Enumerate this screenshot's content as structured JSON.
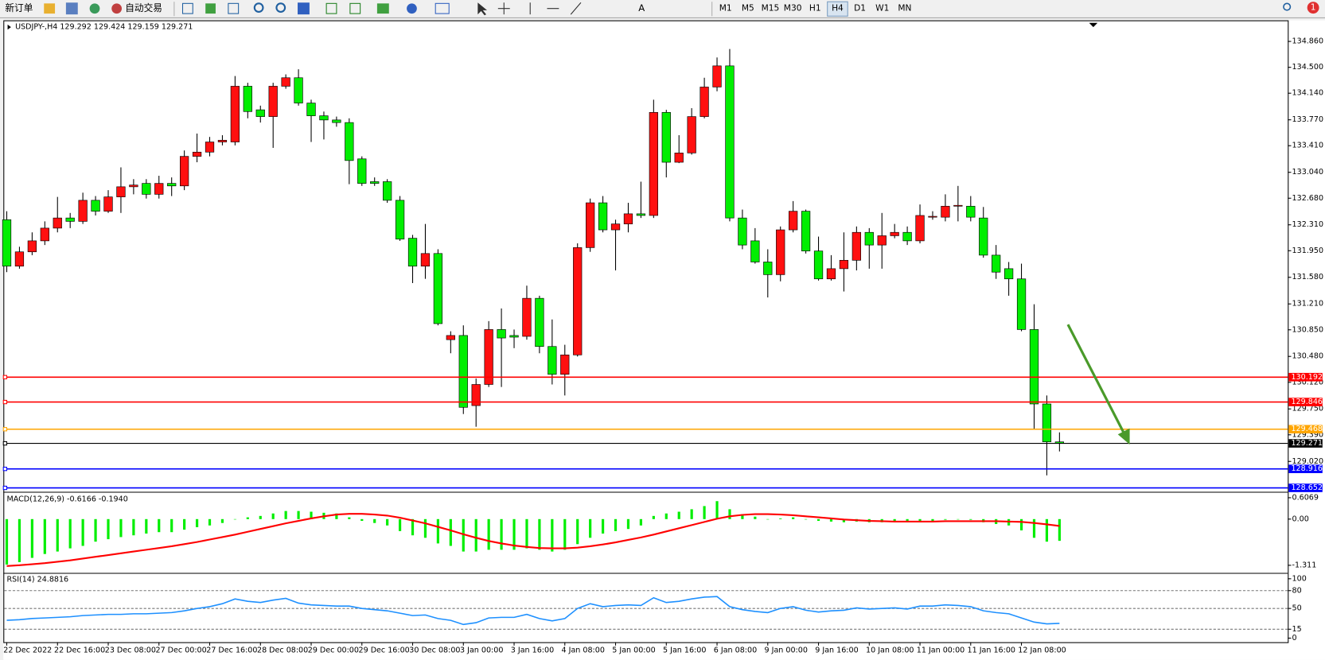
{
  "toolbar": {
    "new_order": "新订单",
    "auto_trading": "自动交易",
    "timeframes": [
      "M1",
      "M5",
      "M15",
      "M30",
      "H1",
      "H4",
      "D1",
      "W1",
      "MN"
    ],
    "active_timeframe": "H4",
    "notifications": 1
  },
  "chart_data": [
    {
      "type": "candlestick",
      "title": "USDJPY-,H4 129.292 129.424 129.159 129.271",
      "up_color": "#ff1010",
      "down_color": "#00ee00",
      "categories": [
        "22 Dec 2022",
        null,
        null,
        null,
        "22 Dec 16:00",
        null,
        null,
        null,
        "23 Dec 08:00",
        null,
        null,
        null,
        "27 Dec 00:00",
        null,
        null,
        null,
        "27 Dec 16:00",
        null,
        null,
        null,
        "28 Dec 08:00",
        null,
        null,
        null,
        "29 Dec 00:00",
        null,
        null,
        null,
        "29 Dec 16:00",
        null,
        null,
        null,
        "30 Dec 08:00",
        null,
        null,
        null,
        "3 Jan 00:00",
        null,
        null,
        null,
        "3 Jan 16:00",
        null,
        null,
        null,
        "4 Jan 08:00",
        null,
        null,
        null,
        "5 Jan 00:00",
        null,
        null,
        null,
        "5 Jan 16:00",
        null,
        null,
        null,
        "6 Jan 08:00",
        null,
        null,
        null,
        "9 Jan 00:00",
        null,
        null,
        null,
        "9 Jan 16:00",
        null,
        null,
        null,
        "10 Jan 08:00",
        null,
        null,
        null,
        "11 Jan 00:00",
        null,
        null,
        null,
        "11 Jan 16:00",
        null,
        null,
        null,
        "12 Jan 08:00",
        null,
        null,
        null
      ],
      "open": [
        132.381,
        131.735,
        131.934,
        132.087,
        132.264,
        132.405,
        132.358,
        132.651,
        132.499,
        132.698,
        132.839,
        132.886,
        132.734,
        132.886,
        132.851,
        133.262,
        133.321,
        133.462,
        133.462,
        134.237,
        133.909,
        133.815,
        134.237,
        134.355,
        134.003,
        133.826,
        133.768,
        133.732,
        133.227,
        132.91,
        132.91,
        132.651,
        132.123,
        131.735,
        131.911,
        130.713,
        130.771,
        129.796,
        130.09,
        130.854,
        130.771,
        130.759,
        131.288,
        130.618,
        130.231,
        130.501,
        131.993,
        132.616,
        132.24,
        132.322,
        132.463,
        132.44,
        133.873,
        133.18,
        133.309,
        133.815,
        134.226,
        134.52,
        132.405,
        132.087,
        131.793,
        131.617,
        132.24,
        132.499,
        131.946,
        131.558,
        131.7,
        131.817,
        132.205,
        132.029,
        132.158,
        132.205,
        132.087,
        132.416,
        132.416,
        132.569,
        132.569,
        132.405,
        131.888,
        131.7,
        131.558,
        130.854,
        129.819,
        129.292
      ],
      "high": [
        132.499,
        132.005,
        132.205,
        132.358,
        132.698,
        132.475,
        132.757,
        132.71,
        132.792,
        133.109,
        132.945,
        132.945,
        132.992,
        132.969,
        133.344,
        133.579,
        133.532,
        133.556,
        134.379,
        134.285,
        133.967,
        134.285,
        134.402,
        134.473,
        134.05,
        133.885,
        133.815,
        133.791,
        133.262,
        132.969,
        132.945,
        132.71,
        132.17,
        132.322,
        131.97,
        130.83,
        130.912,
        130.172,
        130.971,
        131.147,
        130.854,
        131.464,
        131.324,
        130.994,
        130.642,
        132.052,
        132.675,
        132.71,
        132.381,
        132.616,
        132.91,
        134.05,
        133.909,
        133.556,
        133.932,
        134.355,
        134.637,
        134.755,
        132.522,
        132.264,
        131.97,
        132.287,
        132.64,
        132.522,
        132.146,
        131.888,
        132.205,
        132.287,
        132.264,
        132.475,
        132.322,
        132.287,
        132.593,
        132.499,
        132.734,
        132.851,
        132.71,
        132.558,
        132.029,
        131.793,
        131.77,
        131.206,
        129.937,
        129.424
      ],
      "low": [
        131.652,
        131.7,
        131.888,
        132.029,
        132.205,
        132.264,
        132.322,
        132.44,
        132.475,
        132.475,
        132.734,
        132.675,
        132.675,
        132.71,
        132.792,
        133.18,
        133.262,
        133.415,
        133.415,
        133.791,
        133.732,
        133.38,
        134.202,
        133.967,
        133.462,
        133.497,
        133.674,
        132.875,
        132.851,
        132.851,
        132.616,
        132.087,
        131.5,
        131.559,
        130.912,
        130.524,
        129.679,
        129.502,
        130.055,
        130.055,
        130.595,
        130.713,
        130.524,
        130.09,
        129.937,
        130.478,
        131.934,
        132.205,
        131.676,
        132.205,
        132.405,
        132.405,
        132.969,
        133.168,
        133.286,
        133.791,
        134.167,
        132.358,
        131.97,
        131.77,
        131.3,
        131.524,
        132.205,
        131.911,
        131.535,
        131.535,
        131.383,
        131.676,
        131.7,
        131.7,
        132.123,
        132.029,
        132.052,
        132.381,
        132.358,
        132.358,
        132.358,
        131.853,
        131.558,
        131.324,
        130.83,
        129.467,
        128.826,
        129.159
      ],
      "close": [
        131.735,
        131.934,
        132.087,
        132.264,
        132.405,
        132.358,
        132.651,
        132.499,
        132.698,
        132.839,
        132.863,
        132.734,
        132.886,
        132.851,
        133.262,
        133.321,
        133.462,
        133.486,
        134.237,
        133.885,
        133.815,
        134.237,
        134.355,
        134.003,
        133.826,
        133.768,
        133.732,
        133.204,
        132.886,
        132.886,
        132.651,
        132.111,
        131.735,
        131.911,
        130.936,
        130.771,
        129.772,
        130.09,
        130.854,
        130.736,
        130.748,
        131.288,
        130.618,
        130.231,
        130.501,
        131.993,
        132.616,
        132.24,
        132.322,
        132.463,
        132.44,
        133.873,
        133.18,
        133.309,
        133.815,
        134.226,
        134.52,
        132.405,
        132.029,
        131.793,
        131.617,
        132.24,
        132.499,
        131.946,
        131.558,
        131.7,
        131.817,
        132.205,
        132.029,
        132.158,
        132.205,
        132.087,
        132.44,
        132.428,
        132.569,
        132.581,
        132.416,
        131.888,
        131.652,
        131.558,
        130.854,
        129.819,
        129.292,
        129.271
      ],
      "lines": [
        {
          "value": 130.192,
          "color": "#ff0000"
        },
        {
          "value": 129.846,
          "color": "#ff0000"
        },
        {
          "value": 129.468,
          "color": "#ffa500"
        },
        {
          "value": 129.271,
          "color": "#000000"
        },
        {
          "value": 128.916,
          "color": "#0000ff"
        },
        {
          "value": 128.652,
          "color": "#0000ff"
        }
      ],
      "ylim": [
        128.621,
        135.118
      ],
      "yticks": [
        {
          "value": 134.86,
          "label": "134.860"
        },
        {
          "value": 134.5,
          "label": "134.500"
        },
        {
          "value": 134.14,
          "label": "134.140"
        },
        {
          "value": 133.77,
          "label": "133.770"
        },
        {
          "value": 133.41,
          "label": "133.410"
        },
        {
          "value": 133.04,
          "label": "133.040"
        },
        {
          "value": 132.68,
          "label": "132.680"
        },
        {
          "value": 132.31,
          "label": "132.310"
        },
        {
          "value": 131.95,
          "label": "131.950"
        },
        {
          "value": 131.58,
          "label": "131.580"
        },
        {
          "value": 131.21,
          "label": "131.210"
        },
        {
          "value": 130.85,
          "label": "130.850"
        },
        {
          "value": 130.48,
          "label": "130.480"
        },
        {
          "value": 130.12,
          "label": "130.120"
        },
        {
          "value": 129.75,
          "label": "129.750"
        },
        {
          "value": 129.39,
          "label": "129.390"
        },
        {
          "value": 129.02,
          "label": "129.020"
        }
      ],
      "grid": false
    },
    {
      "type": "macd",
      "title": "MACD(12,26,9) -0.6166 -0.1940",
      "color": "#00ee00",
      "signal_color": "#ff0000",
      "values": [
        -1.29,
        -1.22,
        -1.1,
        -0.99,
        -0.92,
        -0.83,
        -0.76,
        -0.64,
        -0.57,
        -0.51,
        -0.46,
        -0.41,
        -0.37,
        -0.37,
        -0.3,
        -0.23,
        -0.18,
        -0.11,
        0,
        0.05,
        0.09,
        0.16,
        0.23,
        0.23,
        0.21,
        0.18,
        0.16,
        0.05,
        -0.05,
        -0.11,
        -0.18,
        -0.34,
        -0.46,
        -0.53,
        -0.69,
        -0.76,
        -0.92,
        -0.92,
        -0.87,
        -0.87,
        -0.87,
        -0.83,
        -0.87,
        -0.92,
        -0.87,
        -0.71,
        -0.53,
        -0.41,
        -0.34,
        -0.28,
        -0.18,
        0.09,
        0.16,
        0.21,
        0.28,
        0.37,
        0.51,
        0.28,
        0.14,
        0.07,
        0,
        0.02,
        0.05,
        0,
        -0.05,
        -0.07,
        -0.09,
        -0.07,
        -0.09,
        -0.09,
        -0.07,
        -0.09,
        -0.05,
        -0.05,
        -0.02,
        0,
        -0.02,
        -0.09,
        -0.14,
        -0.18,
        -0.32,
        -0.53,
        -0.64,
        -0.6166
      ],
      "signal": [
        -1.33,
        -1.31,
        -1.28,
        -1.25,
        -1.21,
        -1.17,
        -1.12,
        -1.07,
        -1.02,
        -0.97,
        -0.92,
        -0.87,
        -0.82,
        -0.77,
        -0.71,
        -0.65,
        -0.58,
        -0.51,
        -0.44,
        -0.36,
        -0.28,
        -0.2,
        -0.12,
        -0.05,
        0.02,
        0.08,
        0.13,
        0.15,
        0.15,
        0.13,
        0.1,
        0.04,
        -0.04,
        -0.12,
        -0.22,
        -0.32,
        -0.43,
        -0.53,
        -0.62,
        -0.69,
        -0.75,
        -0.79,
        -0.82,
        -0.83,
        -0.83,
        -0.81,
        -0.77,
        -0.72,
        -0.66,
        -0.59,
        -0.52,
        -0.44,
        -0.35,
        -0.26,
        -0.17,
        -0.08,
        0.01,
        0.08,
        0.12,
        0.14,
        0.14,
        0.13,
        0.11,
        0.08,
        0.05,
        0.02,
        -0.01,
        -0.03,
        -0.05,
        -0.06,
        -0.07,
        -0.07,
        -0.07,
        -0.07,
        -0.06,
        -0.06,
        -0.06,
        -0.06,
        -0.06,
        -0.07,
        -0.08,
        -0.11,
        -0.15,
        -0.194
      ],
      "ylim": [
        -1.479,
        0.727
      ],
      "yticks": [
        0.6069,
        {
          "value": 0,
          "label": "0.00"
        },
        -1.311
      ]
    },
    {
      "type": "line",
      "title": "RSI(14) 24.8816",
      "color": "#1e90ff",
      "values": [
        30,
        31,
        33,
        34,
        35,
        36,
        38,
        39,
        40,
        40,
        41,
        41,
        42,
        43,
        46,
        50,
        53,
        58,
        66,
        62,
        60,
        64,
        67,
        59,
        56,
        55,
        54,
        54,
        50,
        48,
        46,
        42,
        38,
        39,
        33,
        30,
        23,
        26,
        34,
        35,
        35,
        40,
        33,
        29,
        33,
        50,
        58,
        53,
        55,
        56,
        55,
        68,
        60,
        62,
        66,
        69,
        70,
        53,
        48,
        45,
        43,
        50,
        53,
        47,
        44,
        46,
        47,
        51,
        49,
        50,
        51,
        49,
        54,
        54,
        56,
        55,
        53,
        46,
        43,
        41,
        34,
        27,
        24,
        24.8816
      ],
      "ylim": [
        -4,
        107
      ],
      "yticks": [
        100,
        80,
        50,
        15,
        0
      ],
      "levels": [
        80,
        50,
        15
      ]
    }
  ]
}
